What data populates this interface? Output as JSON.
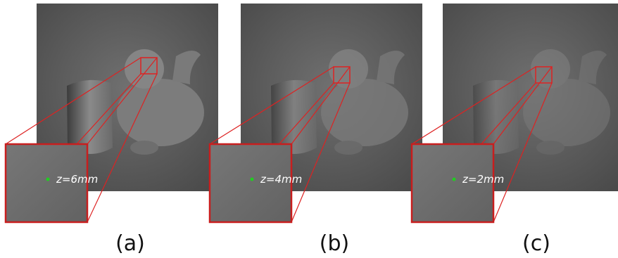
{
  "panels": [
    {
      "label": "(a)",
      "depth": "z=6mm"
    },
    {
      "label": "(b)",
      "depth": "z=4mm"
    },
    {
      "label": "(c)",
      "depth": "z=2mm"
    }
  ]
}
